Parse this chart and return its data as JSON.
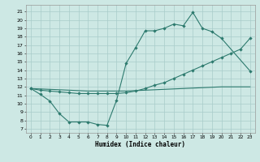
{
  "bg_color": "#cde8e4",
  "grid_color": "#a8ccca",
  "line_color": "#2d7a6e",
  "xlabel": "Humidex (Indice chaleur)",
  "xlim": [
    -0.5,
    23.5
  ],
  "ylim": [
    6.5,
    21.8
  ],
  "yticks": [
    7,
    8,
    9,
    10,
    11,
    12,
    13,
    14,
    15,
    16,
    17,
    18,
    19,
    20,
    21
  ],
  "xticks": [
    0,
    1,
    2,
    3,
    4,
    5,
    6,
    7,
    8,
    9,
    10,
    11,
    12,
    13,
    14,
    15,
    16,
    17,
    18,
    19,
    20,
    21,
    22,
    23
  ],
  "curve1_x": [
    0,
    1,
    2,
    3,
    4,
    5,
    6,
    7,
    8,
    9,
    10,
    11,
    12,
    13,
    14,
    15,
    16,
    17,
    18,
    19,
    20,
    23
  ],
  "curve1_y": [
    11.8,
    11.1,
    10.3,
    8.8,
    7.8,
    7.8,
    7.8,
    7.5,
    7.4,
    10.4,
    14.8,
    16.7,
    18.7,
    18.7,
    19.0,
    19.5,
    19.3,
    20.9,
    19.0,
    18.6,
    17.8,
    13.9
  ],
  "curve2_x": [
    0,
    1,
    2,
    3,
    4,
    5,
    6,
    7,
    8,
    9,
    10,
    11,
    12,
    13,
    14,
    15,
    16,
    17,
    18,
    19,
    20,
    21,
    22,
    23
  ],
  "curve2_y": [
    11.8,
    11.6,
    11.5,
    11.4,
    11.3,
    11.2,
    11.2,
    11.2,
    11.2,
    11.2,
    11.3,
    11.5,
    11.8,
    12.2,
    12.5,
    13.0,
    13.5,
    14.0,
    14.5,
    15.0,
    15.5,
    16.0,
    16.5,
    17.8
  ],
  "curve3_x": [
    0,
    1,
    2,
    3,
    4,
    5,
    6,
    7,
    8,
    9,
    10,
    11,
    12,
    13,
    14,
    15,
    16,
    17,
    18,
    19,
    20,
    21,
    22,
    23
  ],
  "curve3_y": [
    11.8,
    11.75,
    11.7,
    11.65,
    11.6,
    11.55,
    11.5,
    11.5,
    11.5,
    11.5,
    11.5,
    11.55,
    11.6,
    11.65,
    11.7,
    11.75,
    11.8,
    11.85,
    11.9,
    11.95,
    12.0,
    12.0,
    12.0,
    12.0
  ]
}
